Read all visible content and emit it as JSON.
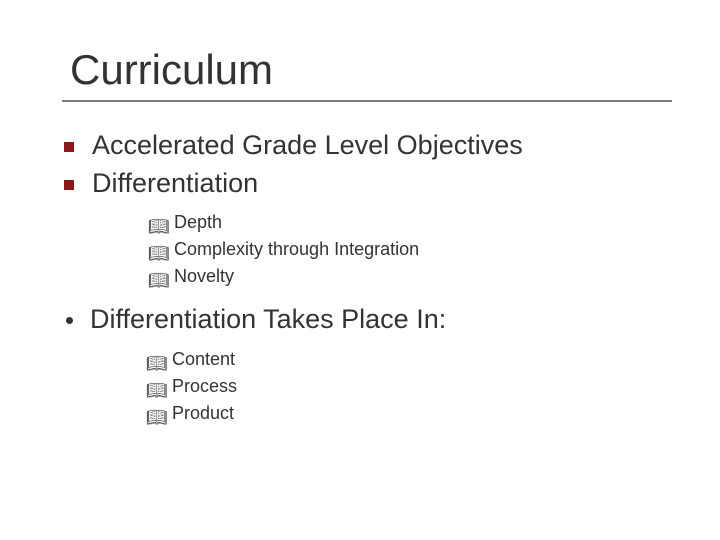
{
  "title": "Curriculum",
  "colors": {
    "text": "#333333",
    "rule": "#7a7a7a",
    "bullet_square": "#8a1a1a",
    "background": "#ffffff"
  },
  "typography": {
    "title_fontsize": 42,
    "level1_fontsize": 27,
    "level2_fontsize": 18,
    "family": "Verdana"
  },
  "bullets": {
    "level1_a": {
      "type": "square",
      "color": "#8a1a1a"
    },
    "level1_b": {
      "type": "dot",
      "color": "#333333"
    },
    "level2": {
      "type": "book",
      "glyph": "📖",
      "color": "#333333"
    }
  },
  "items": [
    {
      "label": "Accelerated Grade Level Objectives",
      "bullet": "square",
      "children": []
    },
    {
      "label": "Differentiation",
      "bullet": "square",
      "children": [
        {
          "label": " Depth"
        },
        {
          "label": "Complexity through Integration"
        },
        {
          "label": " Novelty"
        }
      ]
    },
    {
      "label": "Differentiation Takes Place In:",
      "bullet": "dot",
      "children": [
        {
          "label": " Content"
        },
        {
          "label": " Process"
        },
        {
          "label": " Product"
        }
      ]
    }
  ]
}
